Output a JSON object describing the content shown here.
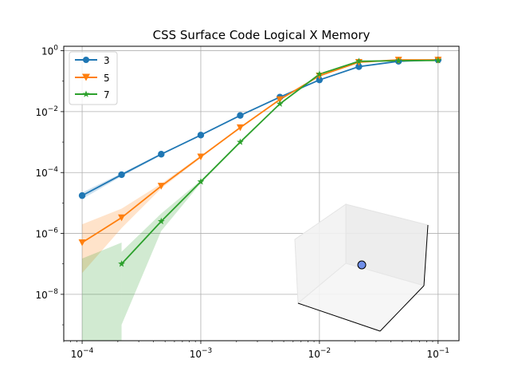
{
  "chart_data": {
    "type": "line",
    "title": "CSS Surface Code Logical X Memory",
    "xlabel": "",
    "ylabel": "",
    "xscale": "log",
    "yscale": "log",
    "xlim": [
      7e-05,
      0.15
    ],
    "ylim": [
      3e-10,
      1.4
    ],
    "grid": true,
    "legend": "top-left",
    "xticks": [
      {
        "value": 0.0001,
        "mant": "10",
        "exp": "−4"
      },
      {
        "value": 0.001,
        "mant": "10",
        "exp": "−3"
      },
      {
        "value": 0.01,
        "mant": "10",
        "exp": "−2"
      },
      {
        "value": 0.1,
        "mant": "10",
        "exp": "−1"
      }
    ],
    "yticks": [
      {
        "value": 1,
        "mant": "10",
        "exp": "0"
      },
      {
        "value": 0.01,
        "mant": "10",
        "exp": "−2"
      },
      {
        "value": 0.0001,
        "mant": "10",
        "exp": "−4"
      },
      {
        "value": 1e-06,
        "mant": "10",
        "exp": "−6"
      },
      {
        "value": 1e-08,
        "mant": "10",
        "exp": "−8"
      }
    ],
    "series": [
      {
        "name": "3",
        "color": "#1f77b4",
        "marker": "circle",
        "x": [
          0.0001,
          0.000215,
          0.000464,
          0.001,
          0.00215,
          0.00464,
          0.01,
          0.0215,
          0.0464,
          0.1
        ],
        "y": [
          1.75e-05,
          8.5e-05,
          0.0004,
          0.0017,
          0.0075,
          0.03,
          0.11,
          0.3,
          0.45,
          0.5
        ],
        "lower": [
          1.35e-05,
          7.5e-05,
          0.00037,
          0.00165,
          0.0073,
          0.0295,
          0.109,
          0.299,
          0.449,
          0.499
        ],
        "upper": [
          2.2e-05,
          9.5e-05,
          0.00043,
          0.00175,
          0.0077,
          0.0305,
          0.111,
          0.301,
          0.451,
          0.501
        ]
      },
      {
        "name": "5",
        "color": "#ff7f0e",
        "marker": "triangle-down",
        "x": [
          0.0001,
          0.000215,
          0.000464,
          0.001,
          0.00215,
          0.00464,
          0.01,
          0.0215,
          0.0464,
          0.1
        ],
        "y": [
          5e-07,
          3.3e-06,
          3.6e-05,
          0.00033,
          0.003,
          0.025,
          0.15,
          0.42,
          0.5,
          0.5
        ],
        "lower": [
          5e-08,
          1.5e-06,
          3e-05,
          0.0003,
          0.0029,
          0.0246,
          0.149,
          0.419,
          0.499,
          0.499
        ],
        "upper": [
          2e-06,
          6.5e-06,
          4.3e-05,
          0.00036,
          0.0031,
          0.0254,
          0.151,
          0.421,
          0.501,
          0.501
        ]
      },
      {
        "name": "7",
        "color": "#2ca02c",
        "marker": "star",
        "x": [
          0.000215,
          0.000464,
          0.001,
          0.00215,
          0.00464,
          0.01,
          0.0215,
          0.0464,
          0.1
        ],
        "y": [
          1e-07,
          2.5e-06,
          5e-05,
          0.001,
          0.018,
          0.17,
          0.45,
          0.47,
          0.48
        ],
        "lower": [
          1e-09,
          1.2e-06,
          4.5e-05,
          0.00098,
          0.0178,
          0.169,
          0.449,
          0.469,
          0.479
        ],
        "upper": [
          2.5e-07,
          4.5e-06,
          5.5e-05,
          0.00102,
          0.0182,
          0.171,
          0.451,
          0.471,
          0.481
        ]
      }
    ],
    "band_green_left": {
      "x": [
        0.0001,
        0.000215
      ],
      "lower": [
        3e-10,
        3e-10
      ],
      "upper": [
        1.5e-07,
        5e-07
      ]
    }
  },
  "colors": {
    "grid": "#b0b0b0",
    "axes": "#000000",
    "inset_point": "#6f8ee8"
  }
}
